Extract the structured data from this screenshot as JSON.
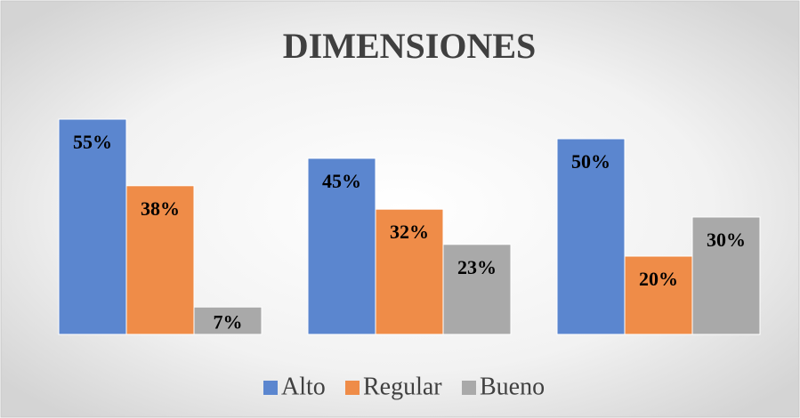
{
  "chart_data": {
    "type": "bar",
    "title": "DIMENSIONES",
    "categories": [
      null,
      null,
      null
    ],
    "series": [
      {
        "name": "Alto",
        "color": "#5b86cf",
        "values": [
          55,
          45,
          50
        ],
        "value_labels": [
          "55%",
          "45%",
          "50%"
        ]
      },
      {
        "name": "Regular",
        "color": "#ef8c48",
        "values": [
          38,
          32,
          20
        ],
        "value_labels": [
          "38%",
          "32%",
          "20%"
        ]
      },
      {
        "name": "Bueno",
        "color": "#a9a9a9",
        "values": [
          7,
          23,
          30
        ],
        "value_labels": [
          "7%",
          "23%",
          "30%"
        ]
      }
    ],
    "legend": "bottom"
  }
}
